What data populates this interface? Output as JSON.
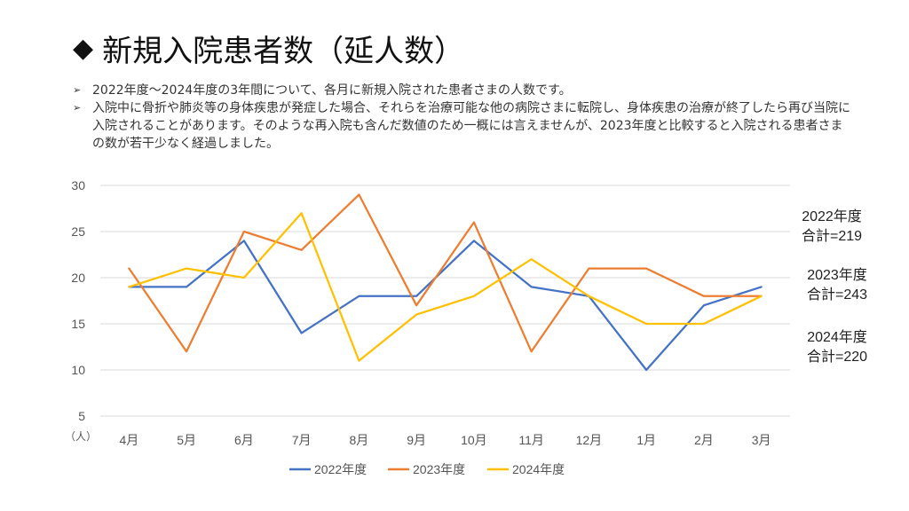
{
  "header": {
    "marker": "◆",
    "title": "新規入院患者数（延人数）"
  },
  "bullets": [
    {
      "marker": "➢",
      "text": "2022年度～2024年度の3年間について、各月に新規入院された患者さまの人数です。"
    },
    {
      "marker": "➢",
      "text": "入院中に骨折や肺炎等の身体疾患が発症した場合、それらを治療可能な他の病院さまに転院し、身体疾患の治療が終了したら再び当院に入院されることがあります。そのような再入院も含んだ数値のため一概には言えませんが、2023年度と比較すると入院される患者さまの数が若干少なく経過しました。"
    }
  ],
  "totals": [
    {
      "year": "2022年度",
      "text": "合計=219"
    },
    {
      "year": "2023年度",
      "text": "合計=243"
    },
    {
      "year": "2024年度",
      "text": "合計=220"
    }
  ],
  "chart_data": {
    "type": "line",
    "unit_label": "（人）",
    "categories": [
      "4月",
      "5月",
      "6月",
      "7月",
      "8月",
      "9月",
      "10月",
      "11月",
      "12月",
      "1月",
      "2月",
      "3月"
    ],
    "ylim": [
      5,
      30
    ],
    "yticks": [
      5,
      10,
      15,
      20,
      25,
      30
    ],
    "grid": true,
    "legend_position": "bottom",
    "series": [
      {
        "name": "2022年度",
        "color": "#4472C4",
        "values": [
          19,
          19,
          24,
          14,
          18,
          18,
          24,
          19,
          18,
          10,
          17,
          19
        ]
      },
      {
        "name": "2023年度",
        "color": "#ED7D31",
        "values": [
          21,
          12,
          25,
          23,
          29,
          17,
          26,
          12,
          21,
          21,
          18,
          18
        ]
      },
      {
        "name": "2024年度",
        "color": "#FFC000",
        "values": [
          19,
          21,
          20,
          27,
          11,
          16,
          18,
          22,
          18,
          15,
          15,
          18
        ]
      }
    ]
  }
}
